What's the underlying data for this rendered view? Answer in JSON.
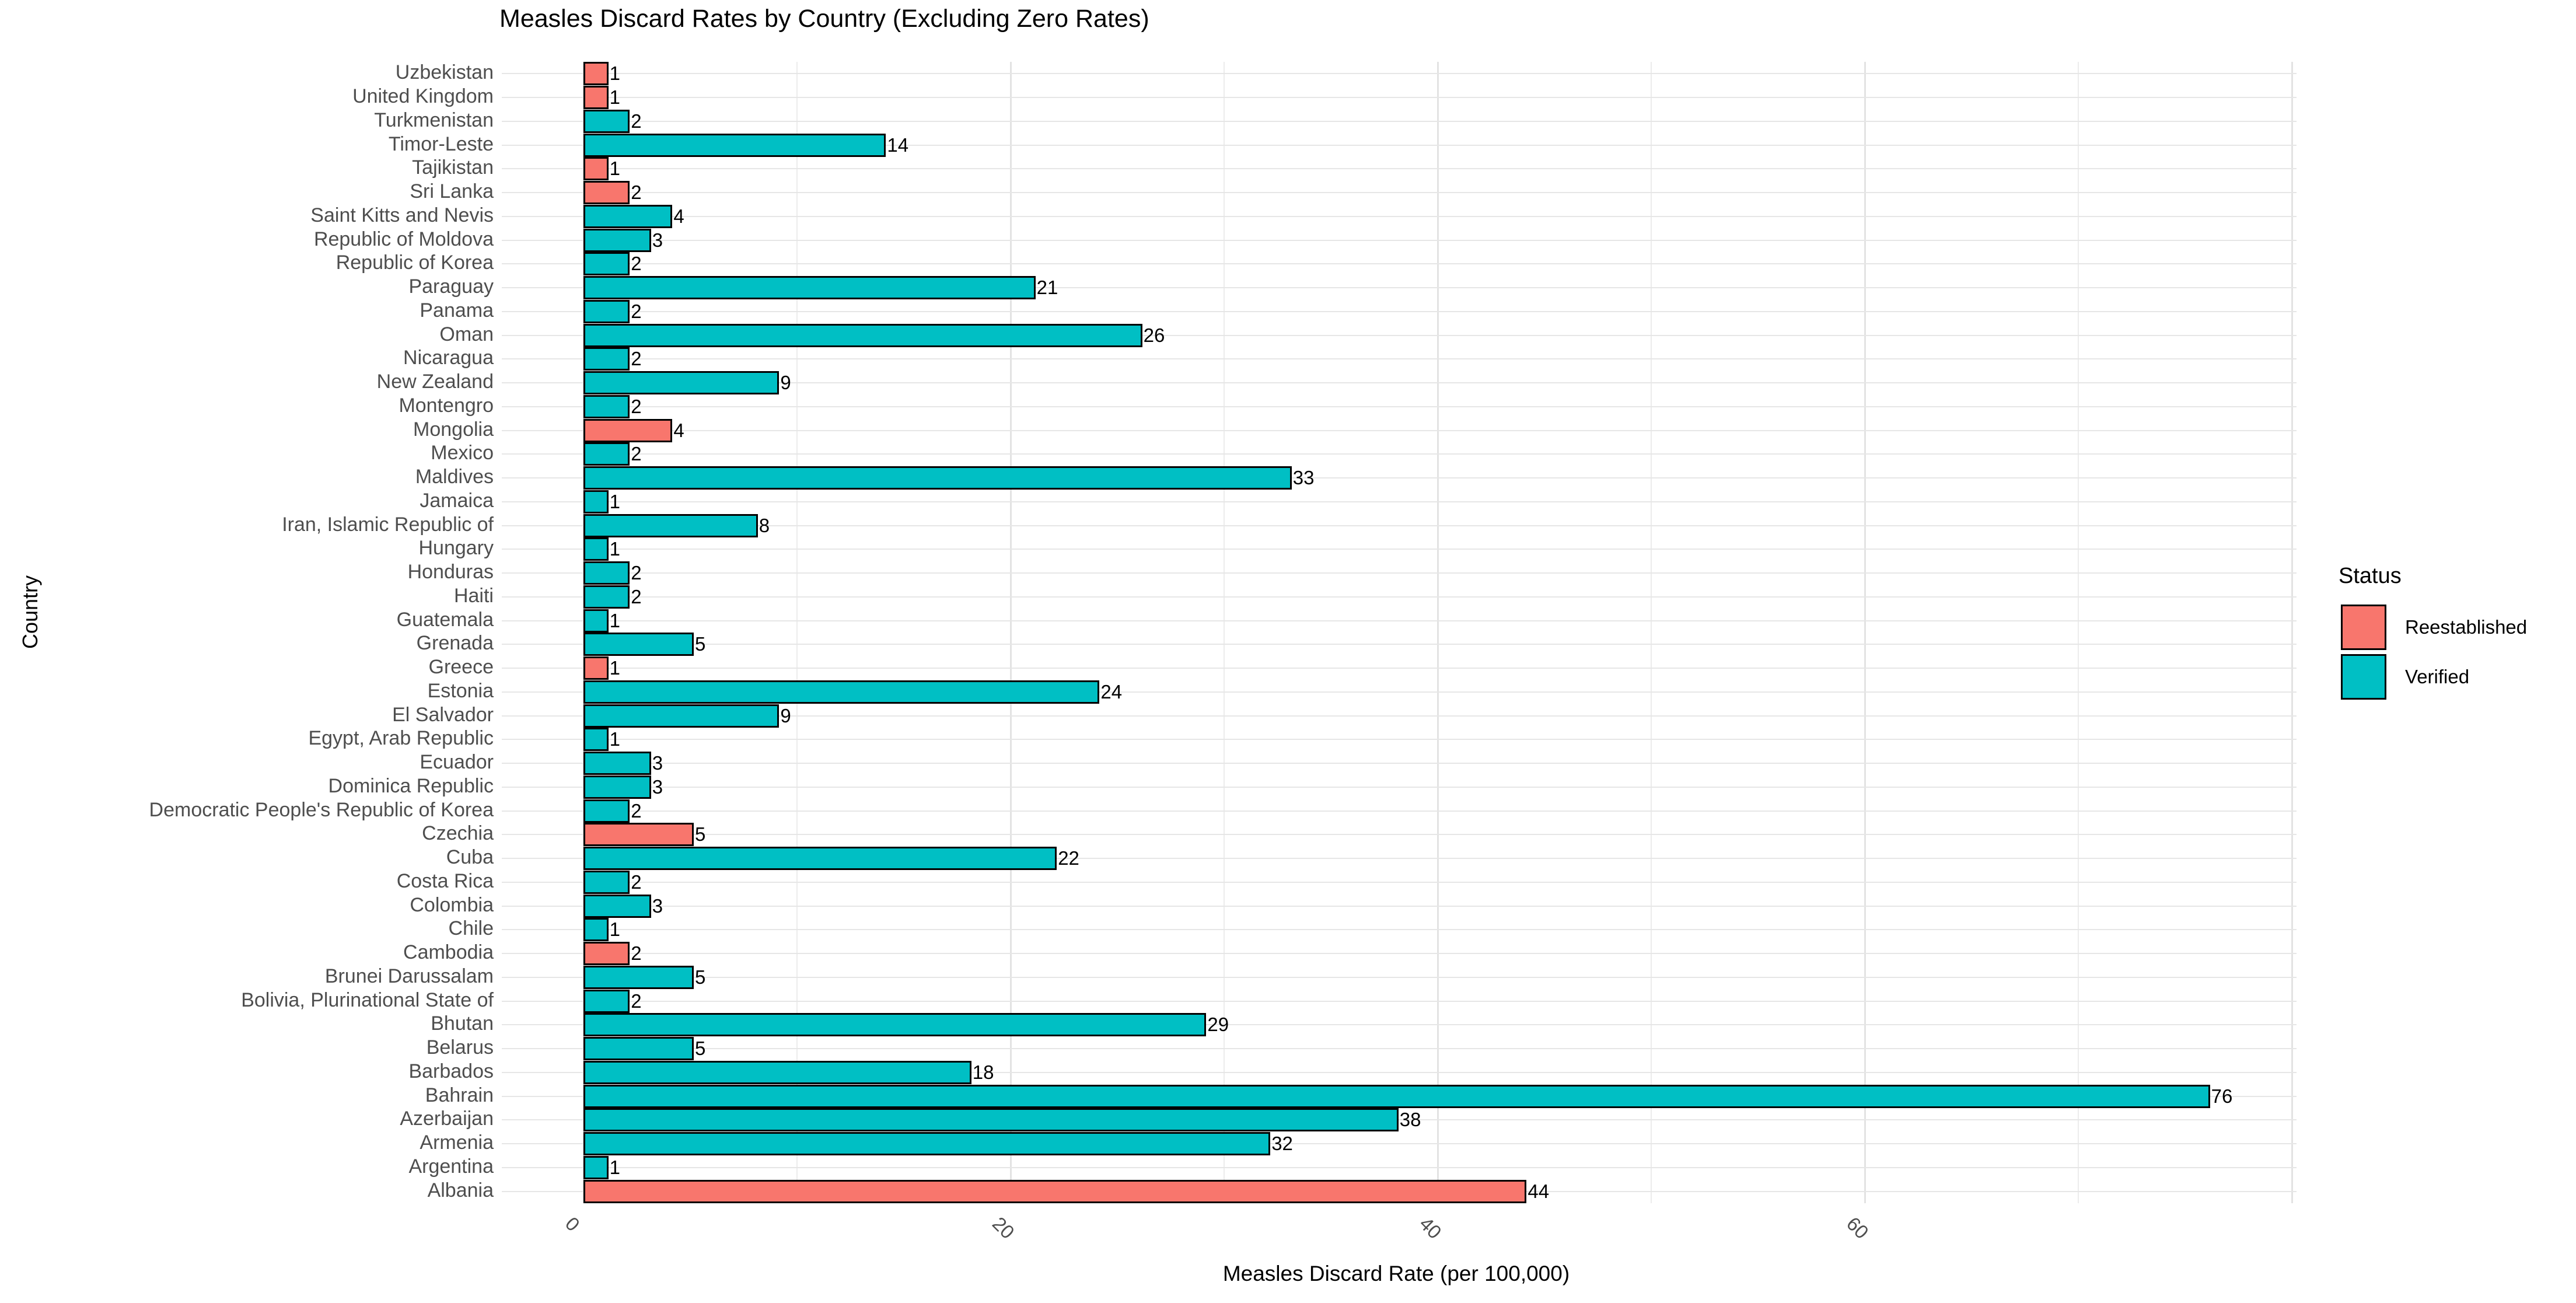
{
  "title": "Measles Discard Rates by Country (Excluding Zero Rates)",
  "x_axis": {
    "label": "Measles Discard Rate (per 100,000)",
    "tick_labels": [
      "0",
      "20",
      "40",
      "60"
    ],
    "tick_values": [
      0,
      20,
      40,
      60
    ]
  },
  "y_axis": {
    "label": "Country"
  },
  "legend": {
    "title": "Status",
    "items": [
      {
        "label": "Reestablished",
        "color": "#F8766D"
      },
      {
        "label": "Verified",
        "color": "#00BFC4"
      }
    ]
  },
  "chart_data": {
    "type": "bar",
    "orientation": "horizontal",
    "title": "Measles Discard Rates by Country (Excluding Zero Rates)",
    "xlabel": "Measles Discard Rate (per 100,000)",
    "ylabel": "Country",
    "xlim": [
      0,
      80
    ],
    "grid": true,
    "legend_position": "right",
    "bar_outline_color": "#000000",
    "categories_top_to_bottom": [
      "Uzbekistan",
      "United Kingdom",
      "Turkmenistan",
      "Timor-Leste",
      "Tajikistan",
      "Sri Lanka",
      "Saint Kitts and Nevis",
      "Republic of Moldova",
      "Republic of Korea",
      "Paraguay",
      "Panama",
      "Oman",
      "Nicaragua",
      "New Zealand",
      "Montengro",
      "Mongolia",
      "Mexico",
      "Maldives",
      "Jamaica",
      "Iran, Islamic Republic of",
      "Hungary",
      "Honduras",
      "Haiti",
      "Guatemala",
      "Grenada",
      "Greece",
      "Estonia",
      "El Salvador",
      "Egypt, Arab Republic",
      "Ecuador",
      "Dominica Republic",
      "Democratic People's Republic of Korea",
      "Czechia",
      "Cuba",
      "Costa Rica",
      "Colombia",
      "Chile",
      "Cambodia",
      "Brunei Darussalam",
      "Bolivia, Plurinational State of",
      "Bhutan",
      "Belarus",
      "Barbados",
      "Bahrain",
      "Azerbaijan",
      "Armenia",
      "Argentina",
      "Albania"
    ],
    "values": [
      1,
      1,
      2,
      14,
      1,
      2,
      4,
      3,
      2,
      21,
      2,
      26,
      2,
      9,
      2,
      4,
      2,
      33,
      1,
      8,
      1,
      2,
      2,
      1,
      5,
      1,
      24,
      9,
      1,
      3,
      3,
      2,
      5,
      22,
      2,
      3,
      1,
      2,
      5,
      2,
      29,
      5,
      18,
      76,
      38,
      32,
      1,
      44
    ],
    "statuses": [
      "Reestablished",
      "Reestablished",
      "Verified",
      "Verified",
      "Reestablished",
      "Reestablished",
      "Verified",
      "Verified",
      "Verified",
      "Verified",
      "Verified",
      "Verified",
      "Verified",
      "Verified",
      "Verified",
      "Reestablished",
      "Verified",
      "Verified",
      "Verified",
      "Verified",
      "Verified",
      "Verified",
      "Verified",
      "Verified",
      "Verified",
      "Reestablished",
      "Verified",
      "Verified",
      "Verified",
      "Verified",
      "Verified",
      "Verified",
      "Reestablished",
      "Verified",
      "Verified",
      "Verified",
      "Verified",
      "Reestablished",
      "Verified",
      "Verified",
      "Verified",
      "Verified",
      "Verified",
      "Verified",
      "Verified",
      "Verified",
      "Verified",
      "Reestablished"
    ]
  }
}
